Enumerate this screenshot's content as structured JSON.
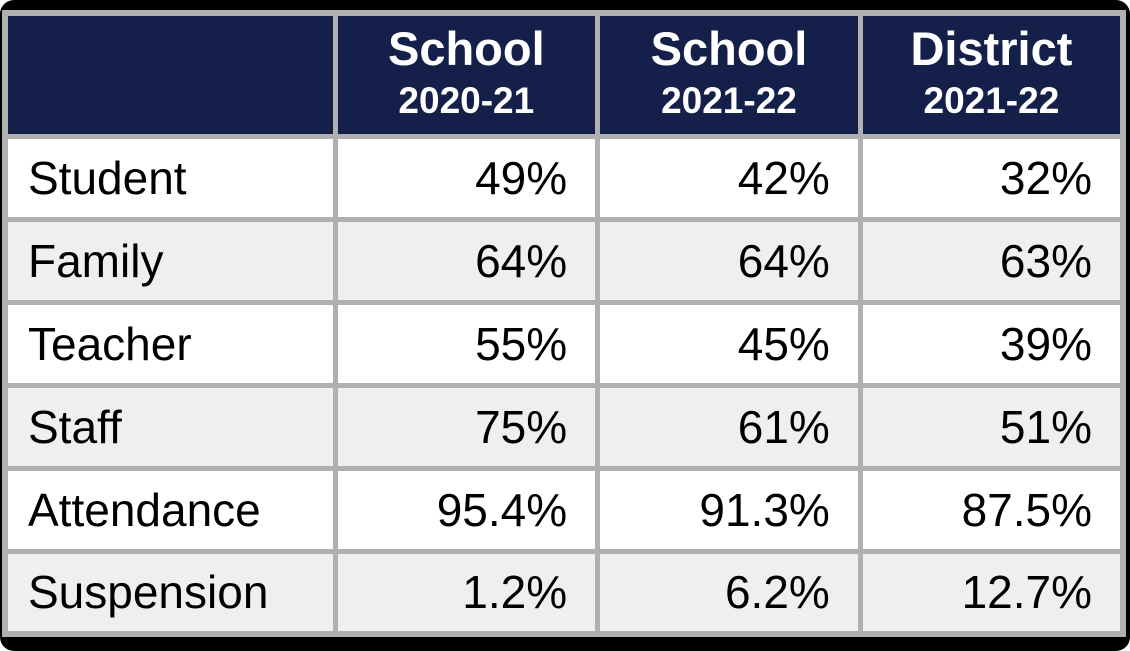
{
  "colors": {
    "frame": "#000000",
    "header_bg": "#15204a",
    "header_text": "#ffffff",
    "grid": "#b0b0b0",
    "row_bg": "#ffffff",
    "row_alt_bg": "#efefef",
    "body_text": "#000000"
  },
  "table": {
    "columns": [
      {
        "title": "School",
        "year": "2020-21"
      },
      {
        "title": "School",
        "year": "2021-22"
      },
      {
        "title": "District",
        "year": "2021-22"
      }
    ],
    "rows": [
      {
        "label": "Student",
        "values": [
          "49%",
          "42%",
          "32%"
        ]
      },
      {
        "label": "Family",
        "values": [
          "64%",
          "64%",
          "63%"
        ]
      },
      {
        "label": "Teacher",
        "values": [
          "55%",
          "45%",
          "39%"
        ]
      },
      {
        "label": "Staff",
        "values": [
          "75%",
          "61%",
          "51%"
        ]
      },
      {
        "label": "Attendance",
        "values": [
          "95.4%",
          "91.3%",
          "87.5%"
        ]
      },
      {
        "label": "Suspension",
        "values": [
          "1.2%",
          "6.2%",
          "12.7%"
        ]
      }
    ]
  },
  "chart_data": {
    "type": "table",
    "columns": [
      "",
      "School 2020-21",
      "School 2021-22",
      "District 2021-22"
    ],
    "rows": [
      [
        "Student",
        "49%",
        "42%",
        "32%"
      ],
      [
        "Family",
        "64%",
        "64%",
        "63%"
      ],
      [
        "Teacher",
        "55%",
        "45%",
        "39%"
      ],
      [
        "Staff",
        "75%",
        "61%",
        "51%"
      ],
      [
        "Attendance",
        "95.4%",
        "91.3%",
        "87.5%"
      ],
      [
        "Suspension",
        "1.2%",
        "6.2%",
        "12.7%"
      ]
    ]
  }
}
